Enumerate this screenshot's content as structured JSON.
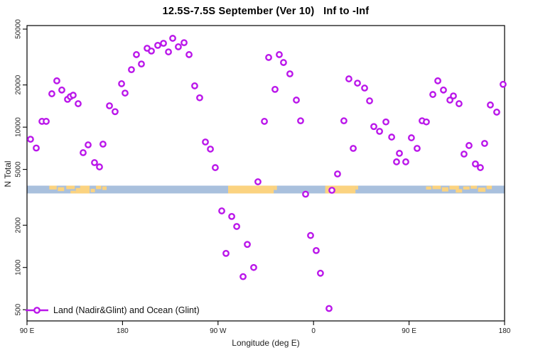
{
  "title": "12.5S-7.5S September (Ver 10)   Inf to -Inf",
  "legend": {
    "label": "Land (Nadir&Glint) and Ocean (Glint)"
  },
  "chart_data": {
    "type": "scatter",
    "title": "12.5S-7.5S September (Ver 10)   Inf to -Inf",
    "xlabel": "Longitude (deg E)",
    "ylabel": "N Total",
    "legend_position": "bottom-left-inside",
    "grid": false,
    "marker": {
      "shape": "open-circle",
      "color": "#BA16EA",
      "radius_px": 3.7,
      "stroke_px": 2.4
    },
    "x_axis": {
      "units": "deg E, wrapping 90E to 180 twice",
      "range_deg": [
        90,
        540
      ],
      "ticks": [
        {
          "deg": 90,
          "label": "90 E"
        },
        {
          "deg": 180,
          "label": "180"
        },
        {
          "deg": 270,
          "label": "90 W"
        },
        {
          "deg": 360,
          "label": "0"
        },
        {
          "deg": 450,
          "label": "90 E"
        },
        {
          "deg": 540,
          "label": "180"
        }
      ]
    },
    "y_axis": {
      "scale": "log",
      "tick_values": [
        500,
        1000,
        2000,
        5000,
        10000,
        20000,
        50000
      ],
      "tick_labels": [
        "500",
        "1000",
        "2000",
        "5000",
        "10000",
        "20000",
        "50000"
      ],
      "label_rotation_deg": -90
    },
    "map_strip": {
      "description": "latitude-band world map strip: ocean blue with land patches (Indonesia/PNG, South America, Africa, Indonesia repeated)",
      "ocean_color": "#A9C0DD",
      "land_color": "#FBD380",
      "value_band": [
        3370,
        3830
      ],
      "land_patches": [
        [
          111,
          118,
          0,
          0.5
        ],
        [
          119,
          125,
          0.2,
          0.7
        ],
        [
          127,
          135,
          0,
          0.45
        ],
        [
          131,
          136,
          0.65,
          1
        ],
        [
          136,
          142,
          0.3,
          1
        ],
        [
          140,
          149,
          0,
          1
        ],
        [
          150,
          154,
          0.4,
          0.85
        ],
        [
          155,
          160,
          0,
          0.45
        ],
        [
          161,
          165,
          0.1,
          0.55
        ],
        [
          279.5,
          322.5,
          0,
          1
        ],
        [
          322.5,
          325.5,
          0,
          0.55
        ],
        [
          371,
          399.5,
          0,
          1
        ],
        [
          399.5,
          402,
          0,
          0.5
        ],
        [
          466,
          471,
          0.1,
          0.5
        ],
        [
          472,
          480,
          0,
          0.45
        ],
        [
          481,
          487,
          0.2,
          0.75
        ],
        [
          488,
          497,
          0,
          0.5
        ],
        [
          494,
          500,
          0.45,
          0.9
        ],
        [
          501,
          507,
          0.1,
          0.5
        ],
        [
          508,
          514,
          0,
          0.4
        ],
        [
          515,
          522,
          0.25,
          0.8
        ],
        [
          523,
          528,
          0,
          0.45
        ]
      ]
    },
    "series": [
      {
        "name": "Land (Nadir&Glint) and Ocean (Glint)",
        "points": [
          [
            93.3,
            8200
          ],
          [
            98.7,
            7100
          ],
          [
            104.1,
            11000
          ],
          [
            108.1,
            11000
          ],
          [
            113.4,
            17300
          ],
          [
            118.1,
            21400
          ],
          [
            122.8,
            18400
          ],
          [
            128.2,
            15800
          ],
          [
            130.8,
            16500
          ],
          [
            133.5,
            16900
          ],
          [
            138.2,
            14700
          ],
          [
            142.9,
            6580
          ],
          [
            147.6,
            7480
          ],
          [
            153.6,
            5590
          ],
          [
            158.3,
            5210
          ],
          [
            161.6,
            7570
          ],
          [
            167.7,
            14200
          ],
          [
            173.0,
            12900
          ],
          [
            179.1,
            20400
          ],
          [
            182.4,
            17500
          ],
          [
            188.4,
            25700
          ],
          [
            193.1,
            32900
          ],
          [
            197.8,
            28200
          ],
          [
            203.2,
            36500
          ],
          [
            207.2,
            34900
          ],
          [
            213.2,
            38300
          ],
          [
            218.6,
            39600
          ],
          [
            223.3,
            34400
          ],
          [
            227.3,
            43000
          ],
          [
            232.6,
            37400
          ],
          [
            238.0,
            40000
          ],
          [
            242.7,
            32900
          ],
          [
            248.0,
            19700
          ],
          [
            252.7,
            16200
          ],
          [
            258.1,
            7840
          ],
          [
            262.8,
            6980
          ],
          [
            267.4,
            5150
          ],
          [
            273.5,
            2530
          ],
          [
            277.5,
            1260
          ],
          [
            282.9,
            2310
          ],
          [
            287.6,
            1960
          ],
          [
            293.6,
            860
          ],
          [
            297.6,
            1460
          ],
          [
            303.6,
            1000
          ],
          [
            307.6,
            4080
          ],
          [
            313.7,
            11000
          ],
          [
            317.7,
            31400
          ],
          [
            323.7,
            18600
          ],
          [
            327.7,
            32900
          ],
          [
            331.7,
            28900
          ],
          [
            337.7,
            24000
          ],
          [
            343.8,
            15600
          ],
          [
            347.8,
            11100
          ],
          [
            352.5,
            3330
          ],
          [
            357.2,
            1690
          ],
          [
            362.5,
            1320
          ],
          [
            366.5,
            910
          ],
          [
            374.6,
            510
          ],
          [
            377.3,
            3550
          ],
          [
            382.6,
            4640
          ],
          [
            388.6,
            11100
          ],
          [
            393.3,
            22100
          ],
          [
            397.4,
            7060
          ],
          [
            401.4,
            20600
          ],
          [
            408.1,
            19000
          ],
          [
            412.8,
            15400
          ],
          [
            416.8,
            10100
          ],
          [
            422.2,
            9340
          ],
          [
            428.2,
            10900
          ],
          [
            433.6,
            8500
          ],
          [
            438.2,
            5660
          ],
          [
            440.9,
            6510
          ],
          [
            446.9,
            5660
          ],
          [
            452.2,
            8400
          ],
          [
            457.6,
            7060
          ],
          [
            462.3,
            11100
          ],
          [
            466.3,
            10900
          ],
          [
            472.4,
            17100
          ],
          [
            477.1,
            21400
          ],
          [
            482.4,
            18400
          ],
          [
            488.5,
            15600
          ],
          [
            491.8,
            16700
          ],
          [
            497.1,
            14700
          ],
          [
            501.8,
            6430
          ],
          [
            506.5,
            7400
          ],
          [
            512.5,
            5470
          ],
          [
            517.2,
            5150
          ],
          [
            521.2,
            7660
          ],
          [
            526.6,
            14400
          ],
          [
            532.6,
            12800
          ],
          [
            538.6,
            20200
          ]
        ]
      }
    ]
  }
}
